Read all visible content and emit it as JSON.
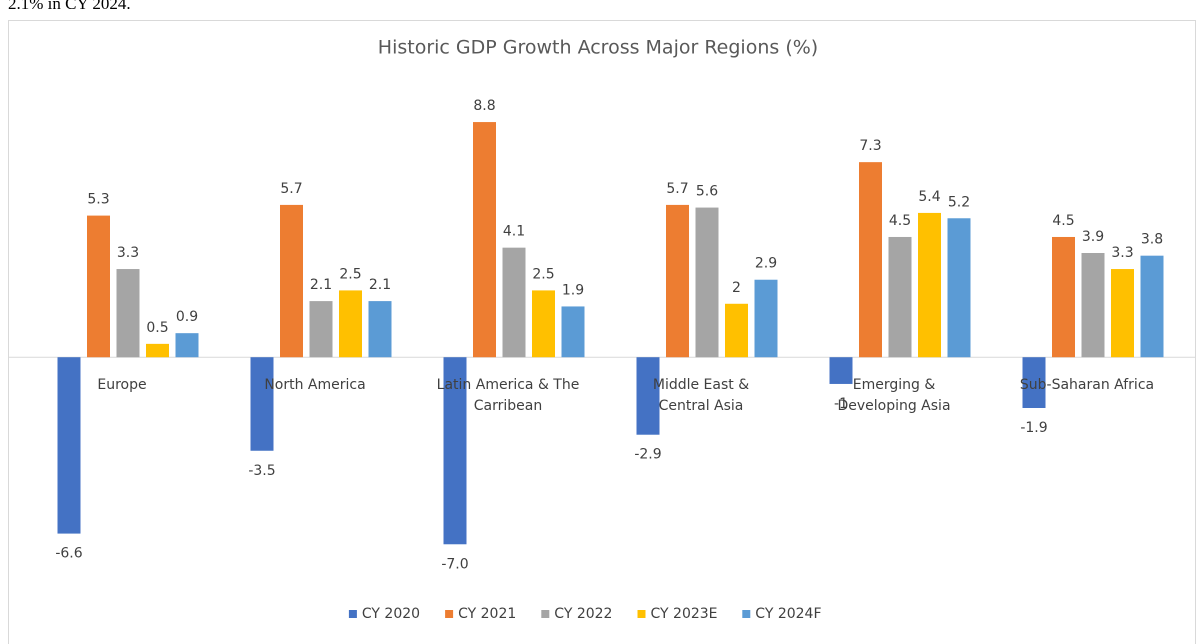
{
  "header_text": "2.1% in CY 2024.",
  "chart_data": {
    "type": "bar",
    "title": "Historic GDP Growth Across Major Regions (%)",
    "categories": [
      "Europe",
      "North America",
      "Latin America & The Carribean",
      "Middle East & Central Asia",
      "Emerging & Developing Asia",
      "Sub-Saharan Africa"
    ],
    "series": [
      {
        "name": "CY 2020",
        "color": "#4472c4",
        "values": [
          -6.6,
          -3.5,
          -7.0,
          -2.9,
          -1,
          -1.9
        ],
        "value_labels": [
          "-6.6",
          "-3.5",
          "-7.0",
          "-2.9",
          "-1",
          "-1.9"
        ]
      },
      {
        "name": "CY 2021",
        "color": "#ed7d31",
        "values": [
          5.3,
          5.7,
          8.8,
          5.7,
          7.3,
          4.5
        ]
      },
      {
        "name": "CY 2022",
        "color": "#a5a5a5",
        "values": [
          3.3,
          2.1,
          4.1,
          5.6,
          4.5,
          3.9
        ]
      },
      {
        "name": "CY 2023E",
        "color": "#ffc000",
        "values": [
          0.5,
          2.5,
          2.5,
          2,
          5.4,
          3.3
        ]
      },
      {
        "name": "CY 2024F",
        "color": "#5b9bd5",
        "values": [
          0.9,
          2.1,
          1.9,
          2.9,
          5.2,
          3.8
        ]
      }
    ],
    "ylim": [
      -8,
      10
    ],
    "legend": "bottom"
  }
}
